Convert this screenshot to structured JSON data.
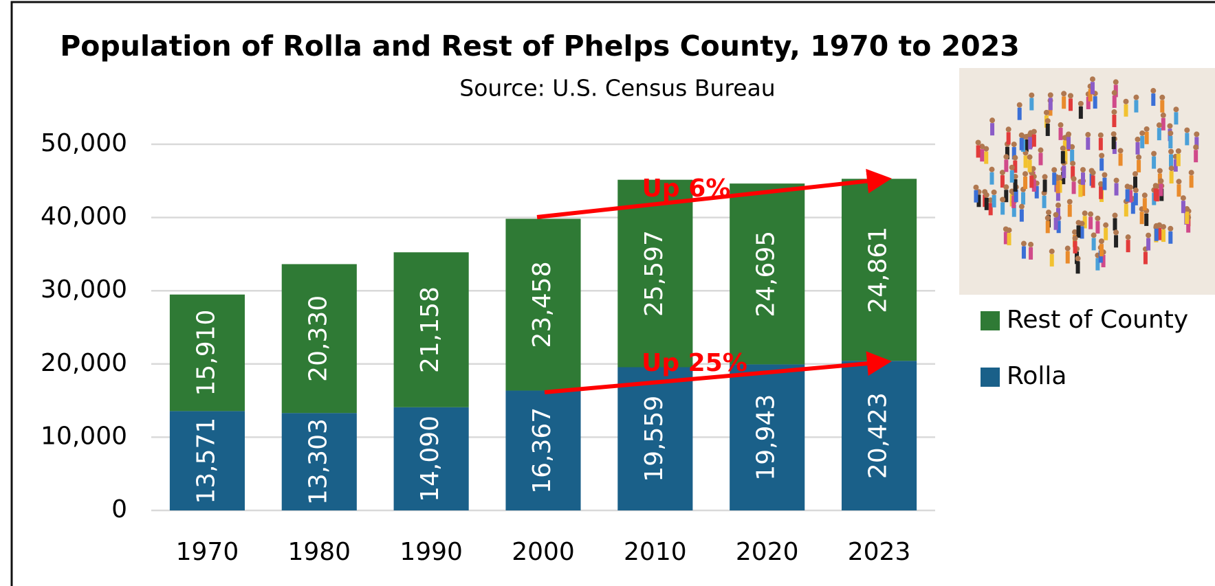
{
  "chart_data": {
    "type": "stacked_bar",
    "title": "Population of Rolla and Rest of Phelps County, 1970 to 2023",
    "subtitle": "Source:  U.S. Census Bureau",
    "categories": [
      "1970",
      "1980",
      "1990",
      "2000",
      "2010",
      "2020",
      "2023"
    ],
    "series": [
      {
        "name": "Rolla",
        "color": "#1a6089",
        "values": [
          13571,
          13303,
          14090,
          16367,
          19559,
          19943,
          20423
        ],
        "value_labels": [
          "13,571",
          "13,303",
          "14,090",
          "16,367",
          "19,559",
          "19,943",
          "20,423"
        ]
      },
      {
        "name": "Rest of County",
        "color": "#2f7a35",
        "values": [
          15910,
          20330,
          21158,
          23458,
          25597,
          24695,
          24861
        ],
        "value_labels": [
          "15,910",
          "20,330",
          "21,158",
          "23,458",
          "25,597",
          "24,695",
          "24,861"
        ]
      }
    ],
    "ylim": [
      0,
      50000
    ],
    "yticks": [
      0,
      {
        "value": 10000,
        "label": "10,000"
      },
      {
        "value": 20000,
        "label": "20,000"
      },
      {
        "value": 30000,
        "label": "30,000"
      },
      {
        "value": 40000,
        "label": "40,000"
      },
      {
        "value": 50000,
        "label": "50,000"
      }
    ],
    "grid": true,
    "annotations": [
      "Up 6%",
      "Up 25%"
    ]
  }
}
